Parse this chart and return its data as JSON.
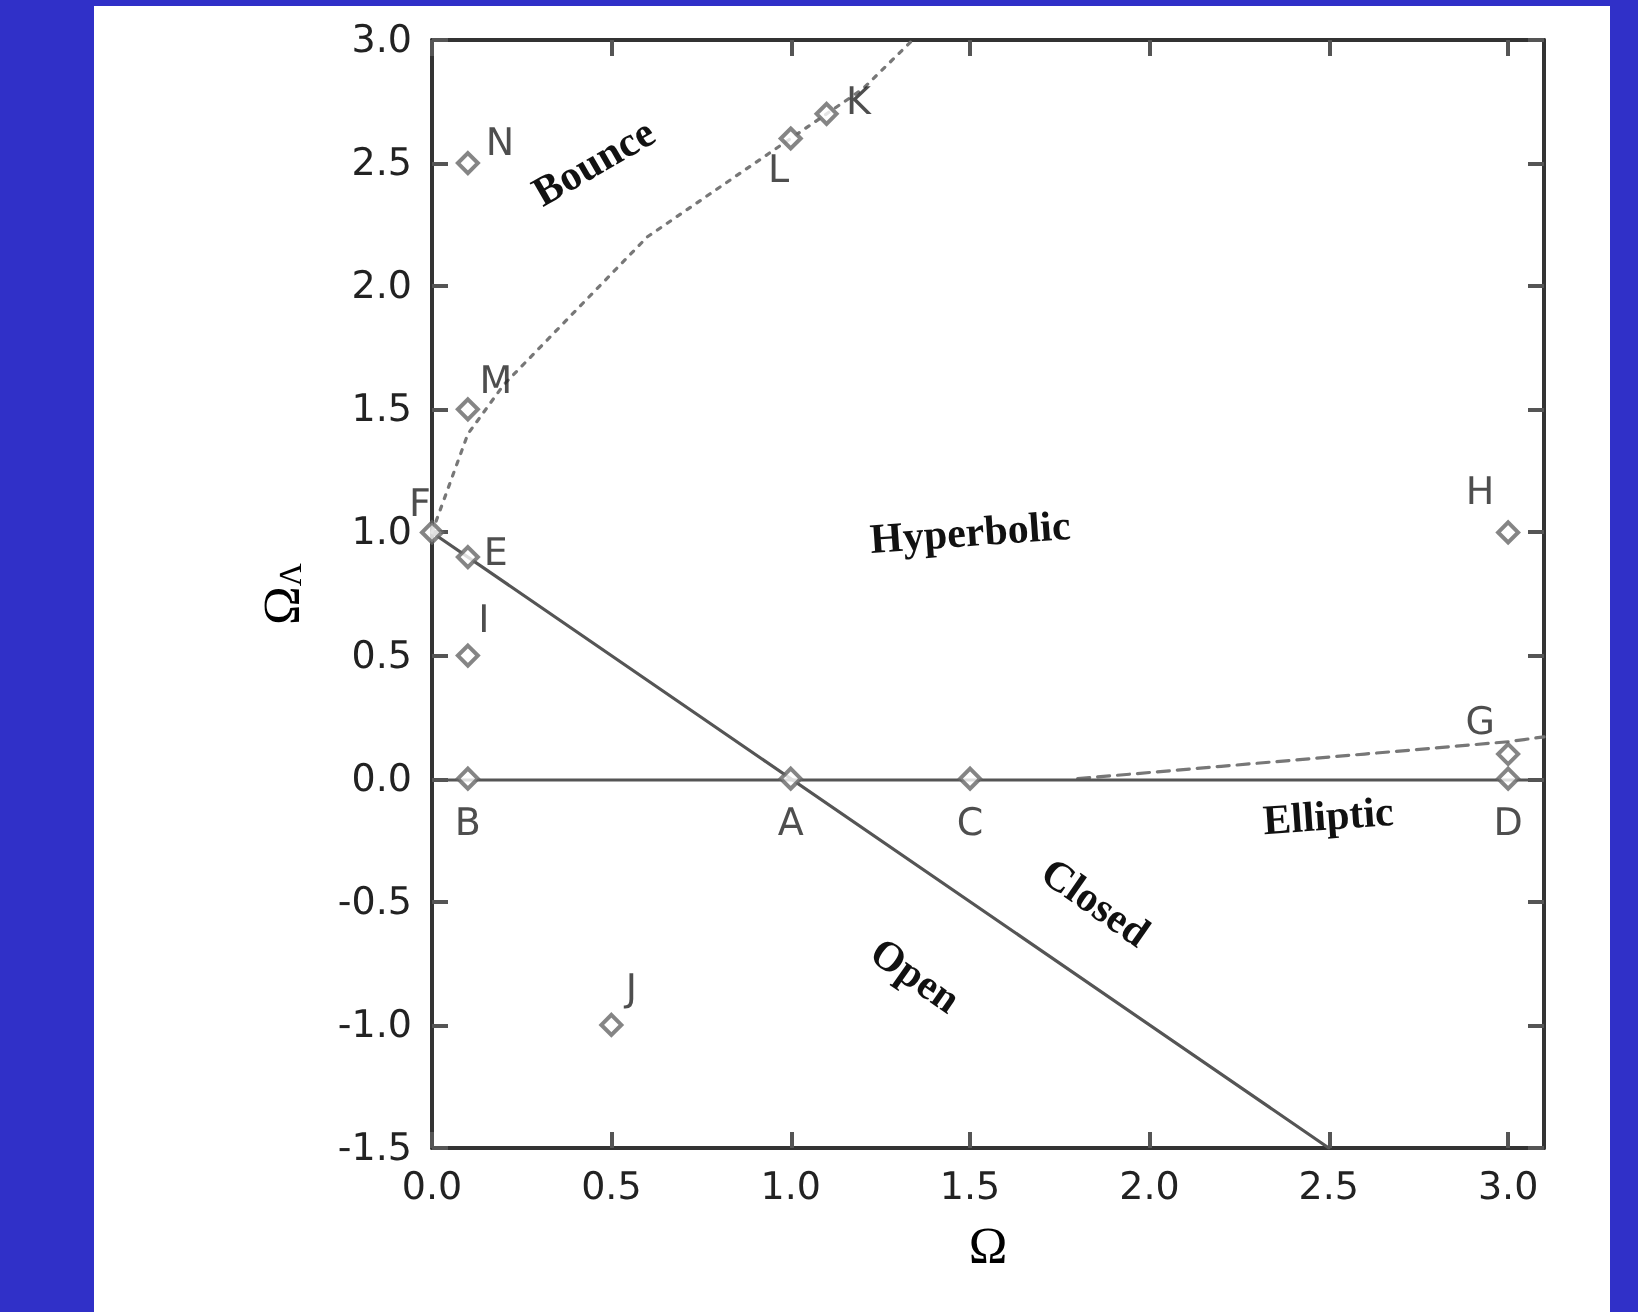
{
  "chart_data": {
    "type": "scatter",
    "xlabel": "Ω",
    "ylabel": "Ω$_{Λ}$",
    "xlim": [
      0,
      3.1
    ],
    "ylim": [
      -1.5,
      3.0
    ],
    "xticks": [
      {
        "value": 0,
        "label": "0.0"
      },
      {
        "value": 0.5,
        "label": "0.5"
      },
      {
        "value": 1,
        "label": "1.0"
      },
      {
        "value": 1.5,
        "label": "1.5"
      },
      {
        "value": 2,
        "label": "2.0"
      },
      {
        "value": 2.5,
        "label": "2.5"
      },
      {
        "value": 3,
        "label": "3.0"
      }
    ],
    "yticks": [
      {
        "value": -1.5,
        "label": "-1.5"
      },
      {
        "value": -1,
        "label": "-1.0"
      },
      {
        "value": -0.5,
        "label": "-0.5"
      },
      {
        "value": 0,
        "label": "0.0"
      },
      {
        "value": 0.5,
        "label": "0.5"
      },
      {
        "value": 1,
        "label": "1.0"
      },
      {
        "value": 1.5,
        "label": "1.5"
      },
      {
        "value": 2,
        "label": "2.0"
      },
      {
        "value": 2.5,
        "label": "2.5"
      },
      {
        "value": 3,
        "label": "3.0"
      }
    ],
    "grid": false,
    "marker": "diamond",
    "series": [
      {
        "type": "line",
        "marker": "none",
        "color": "#555555",
        "line_style": "solid",
        "x": [
          0,
          2.5
        ],
        "values": [
          1,
          -1.5
        ]
      },
      {
        "type": "line",
        "marker": "none",
        "color": "#777777",
        "line_style": "dotted",
        "x": [
          0,
          0.05,
          0.1,
          0.2,
          0.4,
          0.6,
          0.8,
          1.0,
          1.2,
          1.34
        ],
        "values": [
          1,
          1.2,
          1.4,
          1.6,
          1.9,
          2.2,
          2.4,
          2.6,
          2.8,
          3.0
        ]
      },
      {
        "type": "line",
        "marker": "none",
        "color": "#777777",
        "line_style": "dashed",
        "x": [
          1.8,
          2.2,
          2.6,
          3.0,
          3.1
        ],
        "values": [
          0,
          0.05,
          0.1,
          0.15,
          0.17
        ]
      },
      {
        "color": "#666666",
        "x": [
          1,
          0.1,
          1.5,
          3,
          0.1,
          0,
          3,
          3,
          0.1,
          0.5,
          1.1,
          1.0,
          0.1,
          0.1
        ],
        "values": [
          0,
          0,
          0,
          0,
          0.9,
          1,
          0.1,
          1,
          0.5,
          -1,
          2.7,
          2.6,
          1.5,
          2.5
        ],
        "value_labels": [
          "A",
          "B",
          "C",
          "D",
          "E",
          "F",
          "G",
          "H",
          "I",
          "J",
          "K",
          "L",
          "M",
          "N"
        ]
      }
    ],
    "ref_lines": [
      {
        "axis": "y",
        "value": 0,
        "color": "#555555"
      }
    ],
    "annotations": [
      "Bounce",
      "Hyperbolic",
      "Elliptic",
      "Closed",
      "Open"
    ]
  }
}
